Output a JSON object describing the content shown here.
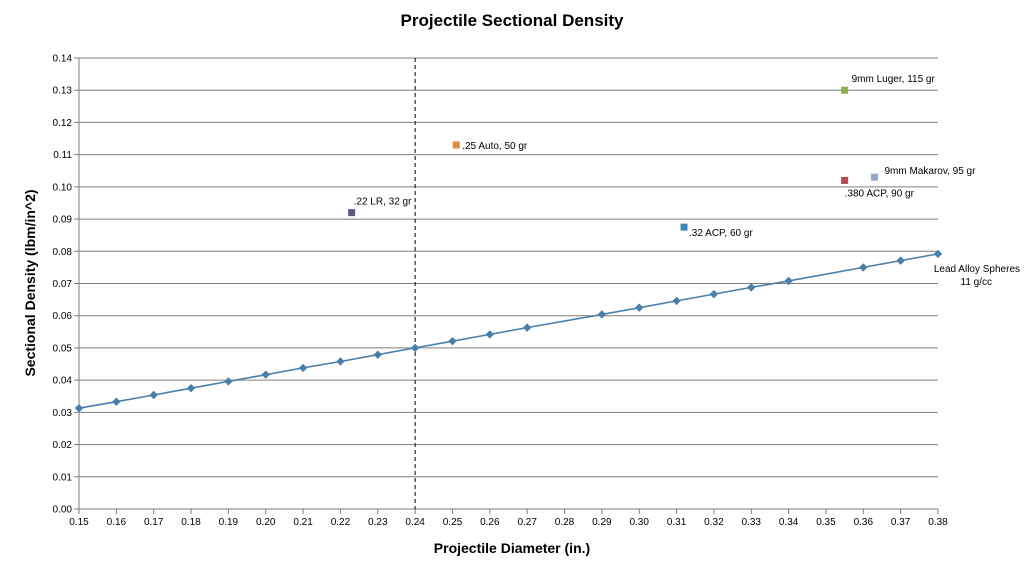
{
  "chart_data": {
    "type": "scatter",
    "title": "Projectile Sectional Density",
    "xlabel": "Projectile Diameter (in.)",
    "ylabel": "Sectional Density (lbm/in^2)",
    "xlim": [
      0.15,
      0.38
    ],
    "ylim": [
      0,
      0.14
    ],
    "x_ticks": [
      "0.15",
      "0.16",
      "0.17",
      "0.18",
      "0.19",
      "0.20",
      "0.21",
      "0.22",
      "0.23",
      "0.24",
      "0.25",
      "0.26",
      "0.27",
      "0.28",
      "0.29",
      "0.30",
      "0.31",
      "0.32",
      "0.33",
      "0.34",
      "0.35",
      "0.36",
      "0.37",
      "0.38"
    ],
    "y_ticks": [
      "0.00",
      "0.01",
      "0.02",
      "0.03",
      "0.04",
      "0.05",
      "0.06",
      "0.07",
      "0.08",
      "0.09",
      "0.10",
      "0.11",
      "0.12",
      "0.13",
      "0.14"
    ],
    "grid": "horizontal",
    "reference_line": {
      "x": 0.24,
      "style": "dashed"
    },
    "line_series": {
      "color": "#4a7eab",
      "label_line1": "Lead Alloy Spheres",
      "label_line2": "11 g/cc",
      "x": [
        0.15,
        0.16,
        0.17,
        0.18,
        0.19,
        0.2,
        0.21,
        0.22,
        0.23,
        0.24,
        0.25,
        0.26,
        0.27,
        0.29,
        0.3,
        0.31,
        0.32,
        0.33,
        0.34,
        0.36,
        0.37,
        0.38
      ],
      "y": [
        0.0313,
        0.0333,
        0.0354,
        0.0375,
        0.0396,
        0.0417,
        0.0438,
        0.0458,
        0.0479,
        0.05,
        0.0521,
        0.0542,
        0.0563,
        0.0604,
        0.0625,
        0.0646,
        0.0667,
        0.0688,
        0.0708,
        0.075,
        0.0771,
        0.0792
      ]
    },
    "points": [
      {
        "label": ".22 LR, 32 gr",
        "x": 0.223,
        "y": 0.092,
        "color": "#5b5a8a",
        "label_pos": "above-right"
      },
      {
        "label": ".25 Auto, 50 gr",
        "x": 0.251,
        "y": 0.113,
        "color": "#e08a3c",
        "label_pos": "right"
      },
      {
        "label": ".32 ACP, 60 gr",
        "x": 0.312,
        "y": 0.0875,
        "color": "#3a87b5",
        "label_pos": "below-right"
      },
      {
        "label": ".380 ACP, 90 gr",
        "x": 0.355,
        "y": 0.102,
        "color": "#b84a4a",
        "label_pos": "below"
      },
      {
        "label": "9mm Makarov,  95 gr",
        "x": 0.363,
        "y": 0.103,
        "color": "#8fa9cc",
        "label_pos": "above-right"
      },
      {
        "label": "9mm Luger,  115 gr",
        "x": 0.355,
        "y": 0.13,
        "color": "#8ab04a",
        "label_pos": "above-right"
      }
    ]
  }
}
